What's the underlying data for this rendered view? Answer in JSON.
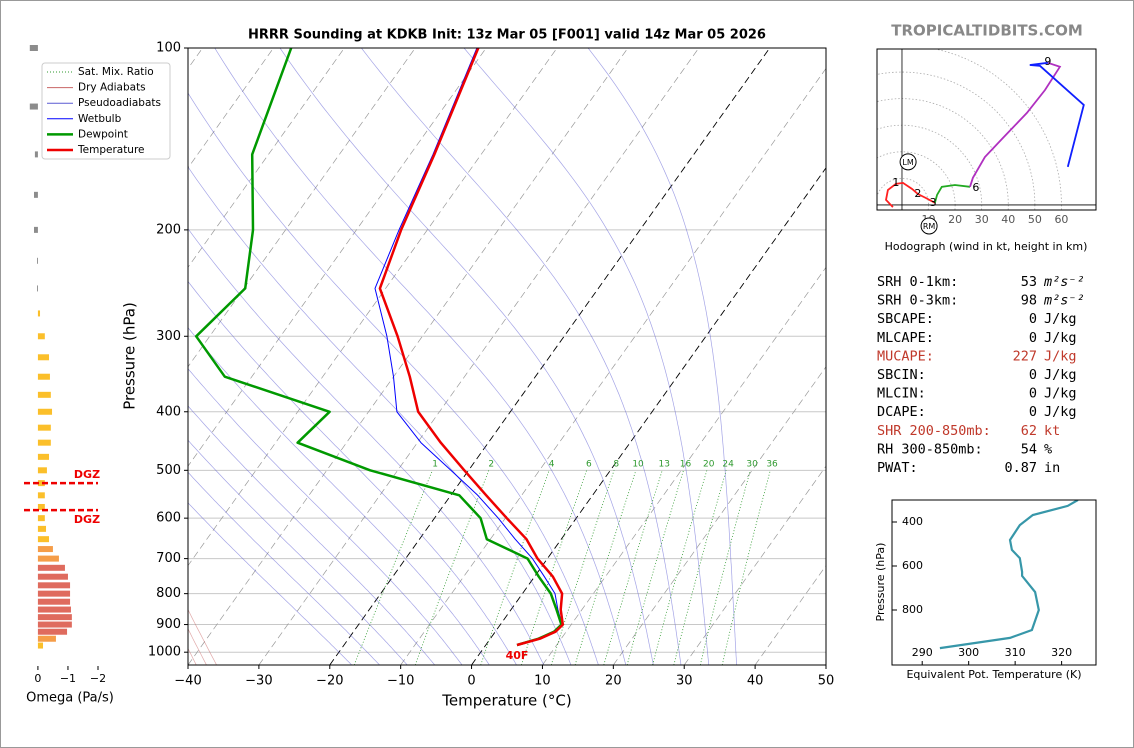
{
  "site": "TROPICALTIDBITS.COM",
  "chart_data": [
    {
      "type": "skewt",
      "title": "HRRR Sounding at KDKB Init: 13z Mar 05 [F001] valid 14z Mar 05 2026",
      "xlabel": "Temperature (°C)",
      "ylabel": "Pressure (hPa)",
      "xlim": [
        -40,
        50
      ],
      "ylim": [
        1050,
        100
      ],
      "log_y": true,
      "xticks": [
        {
          "value": -40,
          "label": "−40"
        },
        {
          "value": -30,
          "label": "−30"
        },
        {
          "value": -20,
          "label": "−20"
        },
        {
          "value": -10,
          "label": "−10"
        },
        0,
        10,
        20,
        30,
        40,
        50
      ],
      "yticks": [
        100,
        200,
        300,
        400,
        500,
        600,
        700,
        800,
        900,
        1000
      ],
      "grid": true,
      "legend": "upper left",
      "pressure": [
        973,
        950,
        925,
        900,
        850,
        800,
        750,
        700,
        650,
        600,
        550,
        500,
        450,
        400,
        350,
        300,
        250,
        200,
        150,
        100
      ],
      "series": [
        {
          "name": "Wetbulb",
          "color": "#0000ff",
          "values": [
            4.4,
            6.9,
            8.4,
            8.7,
            6.6,
            4.6,
            1.4,
            -2.1,
            -6.5,
            -11,
            -16.2,
            -22.5,
            -29.5,
            -36,
            -40,
            -45,
            -51.5,
            -54,
            -56.8,
            -61.3
          ]
        },
        {
          "name": "Dewpoint",
          "color": "#009900",
          "values": [
            4.4,
            6.8,
            8.3,
            8.6,
            6.4,
            4,
            0.6,
            -2.8,
            -10.5,
            -13.5,
            -18.8,
            -33.9,
            -46.9,
            -45.5,
            -63.8,
            -71.9,
            -69.8,
            -74.6,
            -82.3,
            -87.5
          ]
        },
        {
          "name": "Temperature",
          "color": "#ee0000",
          "values": [
            4.4,
            7,
            8.5,
            8.8,
            7,
            5.6,
            2.6,
            -1.4,
            -4.9,
            -9.8,
            -15,
            -20.6,
            -26.7,
            -33,
            -37.7,
            -43.5,
            -50.8,
            -53.7,
            -56.6,
            -61.1
          ]
        }
      ],
      "reference_lines": [
        {
          "name": "Sat. Mix. Ratio",
          "color": "#2f9a2f"
        },
        {
          "name": "Dry Adiabats",
          "color": "#c86464"
        },
        {
          "name": "Pseudoadiabats",
          "color": "#5a5ad2"
        }
      ],
      "mixing_ratios": [
        1,
        2,
        4,
        6,
        8,
        10,
        13,
        16,
        20,
        24,
        30,
        36
      ],
      "surface_label": "40F"
    },
    {
      "type": "bar",
      "orientation": "horizontal",
      "xlabel": "Omega (Pa/s)",
      "xlim": [
        0.33,
        -2
      ],
      "ylim": [
        1050,
        100
      ],
      "log_y": true,
      "xticks": [
        0,
        {
          "value": -1,
          "label": "−1"
        },
        {
          "value": -2,
          "label": "−2"
        }
      ],
      "pressure": [
        100,
        125,
        150,
        175,
        200,
        225,
        250,
        275,
        300,
        325,
        350,
        375,
        400,
        425,
        450,
        475,
        500,
        525,
        550,
        575,
        600,
        625,
        650,
        675,
        700,
        725,
        750,
        775,
        800,
        825,
        850,
        875,
        900,
        925,
        950,
        975
      ],
      "values": [
        0.27,
        0.27,
        0.1,
        0.13,
        0.13,
        0.03,
        0.03,
        -0.07,
        -0.23,
        -0.37,
        -0.4,
        -0.43,
        -0.47,
        -0.43,
        -0.43,
        -0.37,
        -0.3,
        -0.23,
        -0.23,
        -0.23,
        -0.23,
        -0.27,
        -0.37,
        -0.5,
        -0.7,
        -0.9,
        -1.0,
        -1.07,
        -1.07,
        -1.07,
        -1.1,
        -1.13,
        -1.13,
        -0.97,
        -0.6,
        -0.17
      ],
      "colors": [
        "#8c8c8c",
        "#8c8c8c",
        "#8c8c8c",
        "#8c8c8c",
        "#8c8c8c",
        "#8c8c8c",
        "#8c8c8c",
        "#fbbf2a",
        "#fbbf2a",
        "#fbbf2a",
        "#fbbf2a",
        "#fbbf2a",
        "#fbbf2a",
        "#fbbf2a",
        "#fbbf2a",
        "#fbbf2a",
        "#fbbf2a",
        "#fbbf2a",
        "#fbbf2a",
        "#fbbf2a",
        "#fbbf2a",
        "#fbbf2a",
        "#fbbf2a",
        "#f59d48",
        "#f59d48",
        "#df6b5e",
        "#df6b5e",
        "#df6b5e",
        "#df6b5e",
        "#df6b5e",
        "#df6b5e",
        "#df6b5e",
        "#df6b5e",
        "#df6b5e",
        "#f59d48",
        "#fbbf2a"
      ],
      "dgz": {
        "label": "DGZ",
        "color": "#ee0000",
        "pressures": [
          525,
          582
        ]
      }
    },
    {
      "type": "hodograph",
      "caption": "Hodograph (wind in kt, height in km)",
      "xlim": [
        -9.4,
        73
      ],
      "ylim": [
        -1.9,
        58.6
      ],
      "xticks": [
        10,
        20,
        30,
        40,
        50,
        60
      ],
      "series": [
        {
          "color": "#ff2020",
          "u": [
            -3.4,
            -6,
            -5.3,
            -2.3,
            0.4,
            3.8,
            6,
            9,
            12.4
          ],
          "values": [
            -0.8,
            1.9,
            5.6,
            7.9,
            8.3,
            6,
            4.1,
            2.6,
            0.8
          ]
        },
        {
          "color": "#22aa22",
          "u": [
            12.4,
            13.2,
            15,
            19.9,
            25.6
          ],
          "values": [
            0.8,
            3.8,
            6.8,
            7.5,
            6.8
          ]
        },
        {
          "color": "#b030c0",
          "u": [
            25.6,
            26.7,
            31.2,
            38,
            47,
            53.8,
            59.4,
            54.9
          ],
          "values": [
            6.8,
            10.2,
            18,
            25.2,
            34.6,
            43.2,
            51.9,
            53.4
          ]
        },
        {
          "color": "#1020ff",
          "u": [
            54.9,
            48.1,
            51.9,
            68.4,
            62.4
          ],
          "values": [
            53.4,
            52.6,
            52.3,
            37.6,
            14.3
          ]
        }
      ],
      "heights": [
        {
          "height": 1,
          "u": -2.3,
          "v": 8.3
        },
        {
          "height": 2,
          "u": 6,
          "v": 4.1
        },
        {
          "height": 3,
          "u": 11.7,
          "v": 0.8
        },
        {
          "height": 6,
          "u": 27.8,
          "v": 6.4
        },
        {
          "height": 9,
          "u": 54.9,
          "v": 53.8
        }
      ],
      "storm_motions": [
        {
          "label": "LM",
          "u": 2.3,
          "v": 16.2
        },
        {
          "label": "RM",
          "u": 10.2,
          "v": -7.9
        }
      ]
    },
    {
      "type": "line",
      "xlabel": "Equivalent Pot. Temperature (K)",
      "ylabel": "Pressure (hPa)",
      "xlim": [
        283.5,
        327.4
      ],
      "ylim": [
        1050,
        300
      ],
      "xticks": [
        290,
        300,
        310,
        320
      ],
      "yticks": [
        400,
        600,
        800
      ],
      "color": "#3797a9",
      "pressure": [
        300,
        327,
        368,
        414,
        482,
        527,
        564,
        627,
        645,
        718,
        800,
        891,
        927,
        973
      ],
      "values": [
        323.5,
        321.3,
        313.8,
        311,
        308.9,
        309.3,
        311,
        311.5,
        311.5,
        314.3,
        315.1,
        313.6,
        308.9,
        293.8
      ]
    }
  ],
  "indices": [
    {
      "label": "SRH 0-1km:",
      "value": 53,
      "unit": "m²s⁻²"
    },
    {
      "label": "SRH 0-3km:",
      "value": 98,
      "unit": "m²s⁻²"
    },
    {
      "label": "SBCAPE:",
      "value": 0,
      "unit": "J/kg"
    },
    {
      "label": "MLCAPE:",
      "value": 0,
      "unit": "J/kg"
    },
    {
      "label": "MUCAPE:",
      "value": 227,
      "unit": "J/kg",
      "color": "#c0392b"
    },
    {
      "label": "SBCIN:",
      "value": 0,
      "unit": "J/kg"
    },
    {
      "label": "MLCIN:",
      "value": 0,
      "unit": "J/kg"
    },
    {
      "label": "DCAPE:",
      "value": 0,
      "unit": "J/kg"
    },
    {
      "label": "SHR 200-850mb:",
      "value": 62,
      "unit": "kt",
      "color": "#c0392b"
    },
    {
      "label": "RH 300-850mb:",
      "value": 54,
      "unit": "%"
    },
    {
      "label": "PWAT:",
      "value": 0.87,
      "unit": "in"
    }
  ]
}
